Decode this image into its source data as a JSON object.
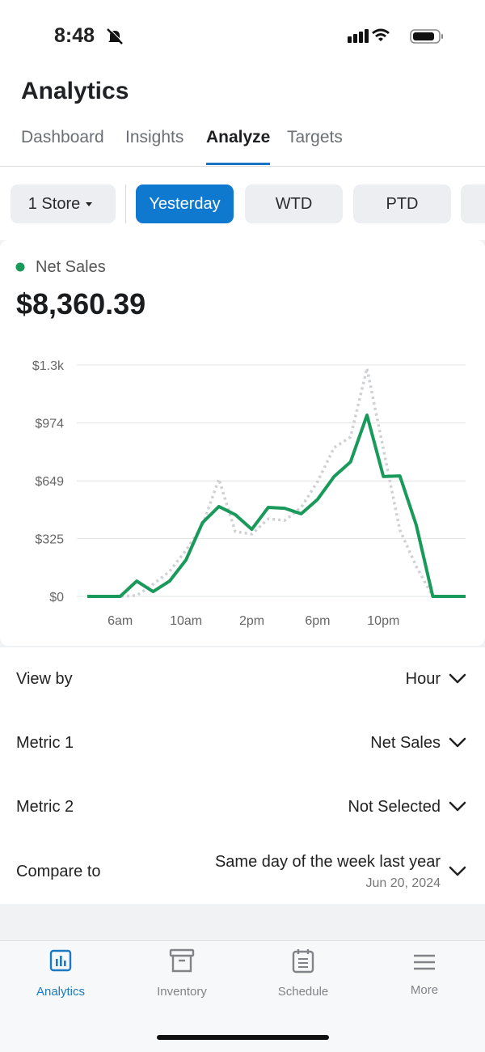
{
  "status_bar": {
    "time": "8:48"
  },
  "header": {
    "title": "Analytics"
  },
  "tabs": [
    {
      "label": "Dashboard",
      "active": false
    },
    {
      "label": "Insights",
      "active": false
    },
    {
      "label": "Analyze",
      "active": true
    },
    {
      "label": "Targets",
      "active": false
    }
  ],
  "filters": {
    "store": "1 Store",
    "periods": [
      {
        "label": "Yesterday",
        "selected": true
      },
      {
        "label": "WTD",
        "selected": false
      },
      {
        "label": "PTD",
        "selected": false
      }
    ]
  },
  "summary": {
    "total": "$8,360.39"
  },
  "chart_data": {
    "type": "line",
    "categories": [
      null,
      null,
      "6am",
      null,
      null,
      null,
      "10am",
      null,
      null,
      null,
      "2pm",
      null,
      null,
      null,
      "6pm",
      null,
      null,
      null,
      "10pm",
      null,
      null,
      null,
      null,
      null
    ],
    "series": [
      {
        "name": "Net Sales",
        "color": "#1a9a5a",
        "values": [
          0,
          0,
          0,
          86,
          27,
          86,
          205,
          414,
          505,
          459,
          377,
          500,
          495,
          464,
          545,
          673,
          755,
          1018,
          673,
          677,
          400,
          0,
          0,
          0
        ]
      },
      {
        "color": "#cfd1d4",
        "dashed": true,
        "values": [
          0,
          0,
          0,
          5,
          68,
          141,
          259,
          400,
          659,
          364,
          350,
          436,
          427,
          500,
          645,
          836,
          895,
          1282,
          827,
          373,
          168,
          0,
          0,
          0
        ]
      }
    ],
    "ylim": [
      0,
      1300
    ],
    "yticks": [
      {
        "value": 0,
        "label": "$0"
      },
      {
        "value": 325,
        "label": "$325"
      },
      {
        "value": 649,
        "label": "$649"
      },
      {
        "value": 974,
        "label": "$974"
      },
      {
        "value": 1300,
        "label": "$1.3k"
      }
    ],
    "grid": true
  },
  "settings": [
    {
      "label": "View by",
      "value": "Hour"
    },
    {
      "label": "Metric 1",
      "value": "Net Sales"
    },
    {
      "label": "Metric 2",
      "value": "Not Selected"
    },
    {
      "label": "Compare to",
      "value": "Same day of the week last year",
      "detail": "Jun 20, 2024"
    }
  ],
  "bottom_nav": [
    {
      "label": "Analytics",
      "active": true
    },
    {
      "label": "Inventory",
      "active": false
    },
    {
      "label": "Schedule",
      "active": false
    },
    {
      "label": "More",
      "active": false
    }
  ]
}
